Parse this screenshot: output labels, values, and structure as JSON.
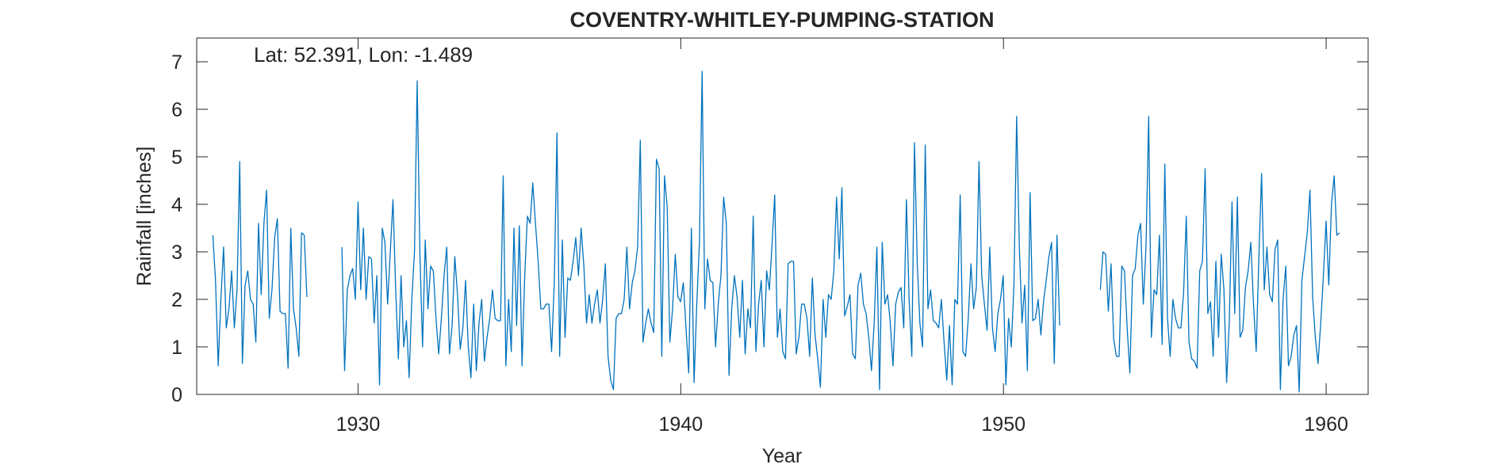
{
  "chart_data": {
    "type": "line",
    "title": "COVENTRY-WHITLEY-PUMPING-STATION",
    "annotation": "Lat: 52.391, Lon: -1.489",
    "xlabel": "Year",
    "ylabel": "Rainfall [inches]",
    "xlim": [
      1925,
      1961.3
    ],
    "ylim": [
      0,
      7.5
    ],
    "xticks": [
      1930,
      1940,
      1950,
      1960
    ],
    "xtick_labels": [
      "1930",
      "1940",
      "1950",
      "1960"
    ],
    "yticks": [
      0,
      1,
      2,
      3,
      4,
      5,
      6,
      7
    ],
    "ytick_labels": [
      "0",
      "1",
      "2",
      "3",
      "4",
      "5",
      "6",
      "7"
    ],
    "grid": false,
    "line_color": "#0072BD",
    "series": [
      {
        "start_year": 1925.5,
        "month_step": 0.0833,
        "values": [
          3.35,
          2.4,
          0.6,
          2.0,
          3.1,
          1.4,
          1.8,
          2.6,
          1.4,
          2.2,
          4.9,
          0.65,
          2.3,
          2.6,
          2.0,
          1.9,
          1.1,
          3.6,
          2.1,
          3.6,
          4.3,
          1.6,
          2.2,
          3.3,
          3.7,
          1.75,
          1.7,
          1.7,
          0.55,
          3.5,
          1.8,
          1.4,
          0.8,
          3.4,
          3.35,
          2.05
        ]
      },
      {
        "start_year": 1929.5,
        "month_step": 0.0833,
        "values": [
          3.1,
          0.5,
          2.2,
          2.5,
          2.65,
          2.0,
          4.05,
          2.2,
          3.5,
          2.0,
          2.9,
          2.85,
          1.5,
          2.5,
          0.2,
          3.5,
          3.2,
          1.9,
          3.0,
          4.1,
          2.2,
          0.75,
          2.5,
          1.0,
          1.55,
          0.35,
          2.0,
          3.0,
          6.6,
          3.0,
          1.0,
          3.25,
          1.8,
          2.7,
          2.6,
          1.6,
          0.85,
          1.6,
          2.5,
          3.1,
          0.85,
          1.45,
          2.9,
          2.1,
          0.95,
          1.4,
          2.4,
          1.0,
          0.35,
          1.9,
          0.5,
          1.5,
          2.0,
          0.7,
          1.2,
          1.6,
          2.2,
          1.6,
          1.55,
          1.55,
          4.6,
          0.6,
          2.0,
          0.9,
          3.5,
          1.45,
          3.55,
          0.6,
          2.5,
          3.75,
          3.6,
          4.45,
          3.6,
          2.8,
          1.8,
          1.8,
          1.9,
          1.9,
          0.9,
          2.35,
          5.5,
          0.8,
          3.25,
          1.2,
          2.45,
          2.4,
          2.8,
          3.3,
          2.5,
          3.5,
          2.7,
          1.5,
          2.1,
          1.5,
          1.9,
          2.2,
          1.5,
          2.0,
          2.75,
          0.8,
          0.3,
          0.1,
          1.6,
          1.7,
          1.7,
          2.0,
          3.1,
          1.8,
          2.35,
          2.6,
          3.1,
          5.35,
          1.1,
          1.5,
          1.8,
          1.5,
          1.3,
          4.95,
          4.75,
          0.8,
          4.6,
          3.95,
          1.1,
          1.8,
          2.95,
          2.05,
          1.95,
          2.35,
          1.4,
          0.45,
          3.5,
          0.25,
          1.9,
          3.2,
          6.8,
          1.8,
          2.85,
          2.4,
          2.35,
          1.0,
          1.9,
          2.5,
          4.15,
          3.6,
          0.4,
          1.8,
          2.5,
          2.05,
          1.2,
          2.4,
          0.85,
          1.8,
          1.4,
          3.75,
          0.9,
          1.9,
          2.4,
          1.0,
          2.6,
          2.2,
          3.15,
          4.2,
          1.2,
          1.8,
          0.9,
          0.75,
          2.75,
          2.8,
          2.8,
          0.85,
          1.2,
          1.9,
          1.9,
          1.6,
          0.8,
          2.45,
          1.25,
          0.75,
          0.15,
          2.0,
          1.2,
          2.1,
          2.0,
          2.6,
          4.15,
          2.85,
          4.35,
          1.65,
          1.85,
          2.1,
          0.85,
          0.75,
          2.3,
          2.55,
          1.9,
          1.7,
          1.2,
          0.5,
          1.5,
          3.1,
          0.1,
          3.2,
          1.9,
          2.1,
          1.5,
          0.6,
          1.9,
          2.15,
          2.25,
          1.4,
          4.1,
          2.0,
          0.8,
          5.3,
          2.8,
          1.5,
          1.0,
          5.25,
          1.8,
          2.2,
          1.55,
          1.5,
          1.4,
          2.0,
          1.1,
          0.3,
          1.45,
          0.2,
          2.0,
          1.9,
          4.2,
          0.9,
          0.8,
          1.6,
          2.75,
          1.8,
          2.25,
          4.9,
          2.5,
          1.9,
          1.35,
          3.1,
          1.4,
          0.9,
          1.7,
          2.0,
          2.5,
          0.2,
          1.6,
          1.0,
          2.3,
          5.85,
          3.1,
          1.5,
          2.3,
          0.5,
          4.25,
          1.55,
          1.6,
          2.0,
          1.25,
          1.95,
          2.4,
          2.9,
          3.2,
          0.65,
          3.35,
          1.45
        ]
      },
      {
        "start_year": 1953.0,
        "month_step": 0.0833,
        "values": [
          2.2,
          3.0,
          2.95,
          1.75,
          2.75,
          1.15,
          0.8,
          0.8,
          2.7,
          2.6,
          1.4,
          0.45,
          2.5,
          2.65,
          3.35,
          3.6,
          1.9,
          3.1,
          5.85,
          1.2,
          2.2,
          2.1,
          3.35,
          1.05,
          4.85,
          1.6,
          0.8,
          2.0,
          1.6,
          1.4,
          1.4,
          2.15,
          3.75,
          1.1,
          0.75,
          0.7,
          0.55,
          2.6,
          2.8,
          4.75,
          1.7,
          1.95,
          0.8,
          2.8,
          1.2,
          2.95,
          2.2,
          0.25,
          1.55,
          4.05,
          1.7,
          4.15,
          1.2,
          1.35,
          2.25,
          2.6,
          3.2,
          1.9,
          0.9,
          2.9,
          4.65,
          2.2,
          3.1,
          2.1,
          1.95,
          3.05,
          3.25,
          0.1,
          2.0,
          2.7,
          0.6,
          0.8,
          1.25,
          1.45,
          0.05,
          2.4,
          2.9,
          3.4,
          4.3,
          2.05,
          1.2,
          0.65,
          1.5,
          2.5,
          3.65,
          2.3,
          4.0,
          4.6,
          3.35,
          3.4
        ]
      }
    ]
  }
}
